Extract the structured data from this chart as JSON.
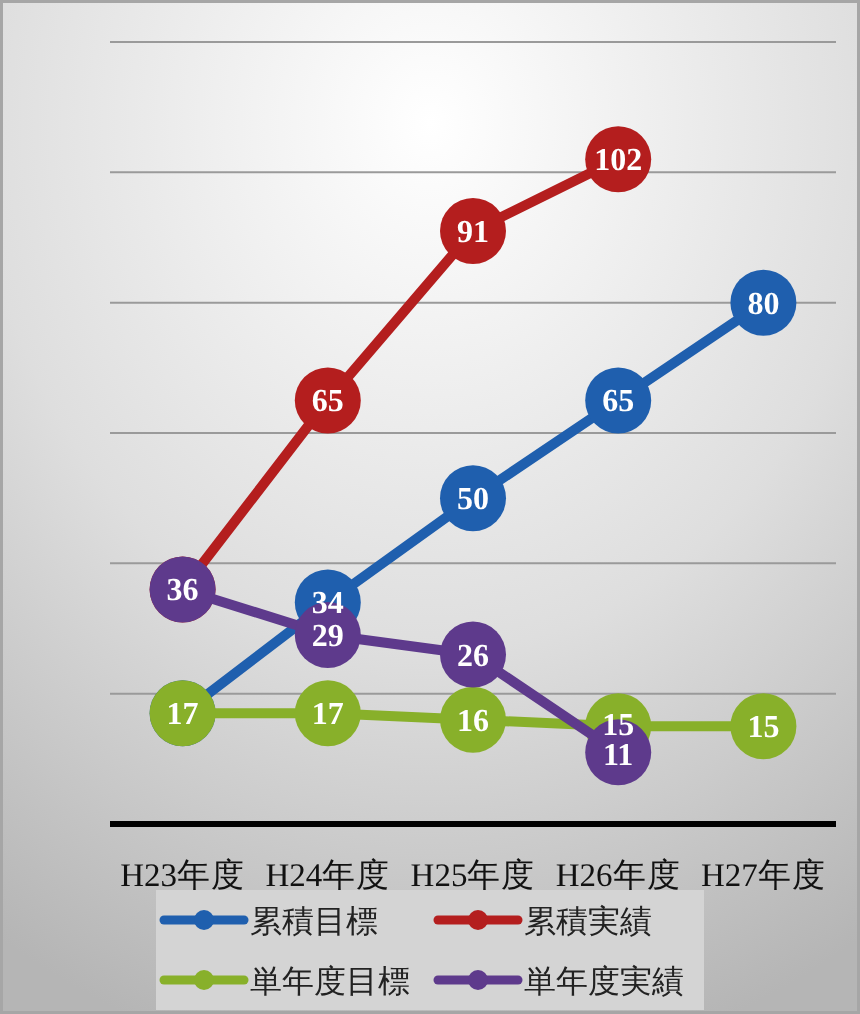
{
  "chart_data": {
    "type": "line",
    "categories": [
      "H23年度",
      "H24年度",
      "H25年度",
      "H26年度",
      "H27年度"
    ],
    "series": [
      {
        "name": "累積目標",
        "color": "#1f5fae",
        "values": [
          17,
          34,
          50,
          65,
          80
        ],
        "value_labels": [
          null,
          "34",
          "50",
          "65",
          "80"
        ]
      },
      {
        "name": "累積実績",
        "color": "#b41e1e",
        "values": [
          36,
          65,
          91,
          102,
          null
        ],
        "value_labels": [
          null,
          "65",
          "91",
          "102",
          null
        ]
      },
      {
        "name": "単年度目標",
        "color": "#88b02a",
        "values": [
          17,
          17,
          16,
          15,
          15
        ],
        "value_labels": [
          "17",
          "17",
          "16",
          "15",
          "15"
        ]
      },
      {
        "name": "単年度実績",
        "color": "#5e3a8c",
        "values": [
          36,
          29,
          26,
          11,
          null
        ],
        "value_labels": [
          "36",
          "29",
          "26",
          "11",
          null
        ]
      }
    ],
    "ylim": [
      0,
      120
    ],
    "yticks": [
      {
        "value": 0,
        "label": null
      },
      {
        "value": 20,
        "label": null
      },
      {
        "value": 40,
        "label": null
      },
      {
        "value": 60,
        "label": null
      },
      {
        "value": 80,
        "label": null
      },
      {
        "value": 100,
        "label": null
      },
      {
        "value": 120,
        "label": null
      }
    ],
    "tick_labels": "x",
    "grid": "y",
    "legend": "bottom",
    "marker": "circle",
    "line_style": "solid"
  }
}
